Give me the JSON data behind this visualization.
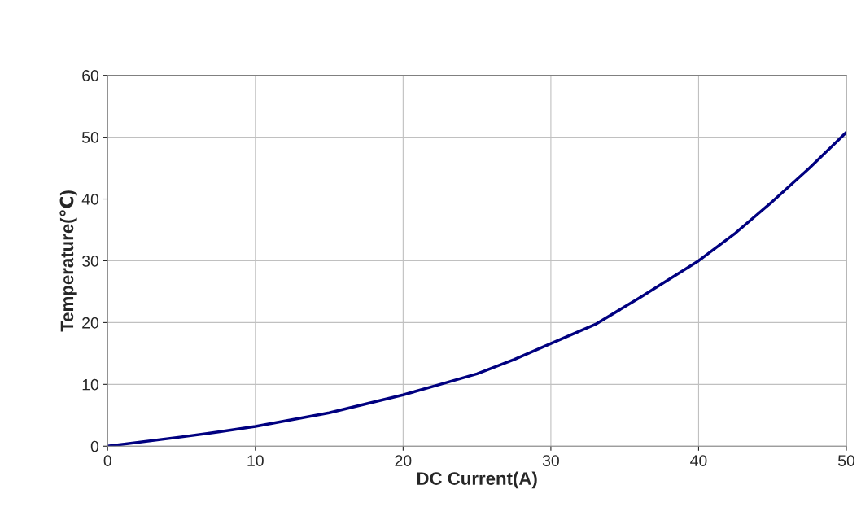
{
  "chart_data": {
    "type": "line",
    "xlabel": "DC Current(A)",
    "ylabel": "Temperature(℃)",
    "x": [
      0,
      5,
      7.5,
      10,
      15,
      20,
      22.5,
      25,
      27.5,
      30,
      33,
      36,
      40,
      42.5,
      45,
      47.5,
      50
    ],
    "series": [
      {
        "color": "#000080",
        "values": [
          0,
          1.5,
          2.3,
          3.2,
          5.4,
          8.3,
          10,
          11.7,
          14,
          16.6,
          19.7,
          24,
          30,
          34.5,
          39.6,
          45,
          50.8
        ]
      }
    ],
    "xlim": [
      0,
      50
    ],
    "xticks": [
      0,
      10,
      20,
      30,
      40,
      50
    ],
    "ylim": [
      0,
      60
    ],
    "yticks": [
      0,
      10,
      20,
      30,
      40,
      50,
      60
    ],
    "grid": true,
    "marker": "none",
    "line_style": "solid"
  }
}
